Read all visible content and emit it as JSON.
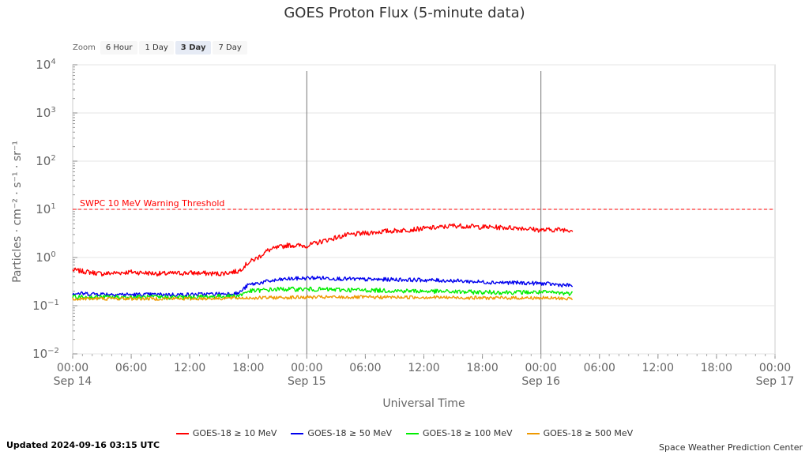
{
  "zoom": {
    "label": "Zoom",
    "buttons": [
      {
        "label": "6 Hour",
        "active": false
      },
      {
        "label": "1 Day",
        "active": false
      },
      {
        "label": "3 Day",
        "active": true
      },
      {
        "label": "7 Day",
        "active": false
      }
    ]
  },
  "chart_data": {
    "type": "line",
    "title": "GOES Proton Flux (5-minute data)",
    "xlabel": "Universal Time",
    "ylabel": "Particles · cm⁻² · s⁻¹ · sr⁻¹",
    "y_scale": "log",
    "ylim": [
      0.01,
      10000
    ],
    "y_ticks": [
      {
        "exp": -2,
        "base": "10",
        "sup": "−2"
      },
      {
        "exp": -1,
        "base": "10",
        "sup": "−1"
      },
      {
        "exp": 0,
        "base": "10",
        "sup": "0"
      },
      {
        "exp": 1,
        "base": "10",
        "sup": "1"
      },
      {
        "exp": 2,
        "base": "10",
        "sup": "2"
      },
      {
        "exp": 3,
        "base": "10",
        "sup": "3"
      },
      {
        "exp": 4,
        "base": "10",
        "sup": "4"
      }
    ],
    "xlim": [
      "2024-09-14 00:00",
      "2024-09-17 00:00"
    ],
    "x_ticks": [
      {
        "time": "2024-09-14 00:00",
        "label": "00:00",
        "date": "Sep 14"
      },
      {
        "time": "2024-09-14 06:00",
        "label": "06:00",
        "date": ""
      },
      {
        "time": "2024-09-14 12:00",
        "label": "12:00",
        "date": ""
      },
      {
        "time": "2024-09-14 18:00",
        "label": "18:00",
        "date": ""
      },
      {
        "time": "2024-09-15 00:00",
        "label": "00:00",
        "date": "Sep 15"
      },
      {
        "time": "2024-09-15 06:00",
        "label": "06:00",
        "date": ""
      },
      {
        "time": "2024-09-15 12:00",
        "label": "12:00",
        "date": ""
      },
      {
        "time": "2024-09-15 18:00",
        "label": "18:00",
        "date": ""
      },
      {
        "time": "2024-09-16 00:00",
        "label": "00:00",
        "date": "Sep 16"
      },
      {
        "time": "2024-09-16 06:00",
        "label": "06:00",
        "date": ""
      },
      {
        "time": "2024-09-16 12:00",
        "label": "12:00",
        "date": ""
      },
      {
        "time": "2024-09-16 18:00",
        "label": "18:00",
        "date": ""
      },
      {
        "time": "2024-09-17 00:00",
        "label": "00:00",
        "date": "Sep 17"
      }
    ],
    "day_lines": [
      "2024-09-15 00:00",
      "2024-09-16 00:00"
    ],
    "threshold": {
      "value": 10,
      "label": "SWPC 10 MeV Warning Threshold",
      "color": "#ff0000"
    },
    "grid": true,
    "legend_position": "bottom",
    "series": [
      {
        "name": "GOES-18 ≥ 10 MeV",
        "color": "#ff0000",
        "x": [
          "2024-09-14 00:00",
          "2024-09-14 03:00",
          "2024-09-14 06:00",
          "2024-09-14 09:00",
          "2024-09-14 12:00",
          "2024-09-14 15:00",
          "2024-09-14 17:00",
          "2024-09-14 18:00",
          "2024-09-14 19:00",
          "2024-09-14 20:00",
          "2024-09-14 21:00",
          "2024-09-14 22:00",
          "2024-09-15 00:00",
          "2024-09-15 02:00",
          "2024-09-15 04:00",
          "2024-09-15 06:00",
          "2024-09-15 08:00",
          "2024-09-15 10:00",
          "2024-09-15 12:00",
          "2024-09-15 14:00",
          "2024-09-15 15:00",
          "2024-09-15 16:00",
          "2024-09-15 18:00",
          "2024-09-15 20:00",
          "2024-09-15 22:00",
          "2024-09-16 00:00",
          "2024-09-16 02:00",
          "2024-09-16 03:15"
        ],
        "y": [
          0.55,
          0.46,
          0.5,
          0.46,
          0.48,
          0.46,
          0.52,
          0.78,
          1.0,
          1.4,
          1.6,
          1.8,
          1.75,
          2.3,
          2.9,
          3.2,
          3.5,
          3.7,
          4.0,
          4.3,
          4.6,
          4.5,
          4.3,
          4.2,
          4.1,
          3.7,
          3.8,
          3.7
        ]
      },
      {
        "name": "GOES-18 ≥ 50 MeV",
        "color": "#0000ee",
        "x": [
          "2024-09-14 00:00",
          "2024-09-14 06:00",
          "2024-09-14 12:00",
          "2024-09-14 17:00",
          "2024-09-14 18:00",
          "2024-09-14 20:00",
          "2024-09-14 22:00",
          "2024-09-15 01:00",
          "2024-09-15 04:00",
          "2024-09-15 06:00",
          "2024-09-15 09:00",
          "2024-09-15 12:00",
          "2024-09-15 15:00",
          "2024-09-15 18:00",
          "2024-09-15 21:00",
          "2024-09-16 00:00",
          "2024-09-16 03:15"
        ],
        "y": [
          0.18,
          0.17,
          0.17,
          0.18,
          0.27,
          0.32,
          0.36,
          0.38,
          0.36,
          0.35,
          0.35,
          0.34,
          0.33,
          0.31,
          0.3,
          0.29,
          0.26
        ]
      },
      {
        "name": "GOES-18 ≥ 100 MeV",
        "color": "#00ee00",
        "x": [
          "2024-09-14 00:00",
          "2024-09-14 06:00",
          "2024-09-14 12:00",
          "2024-09-14 17:00",
          "2024-09-14 18:00",
          "2024-09-14 21:00",
          "2024-09-15 00:00",
          "2024-09-15 06:00",
          "2024-09-15 12:00",
          "2024-09-15 18:00",
          "2024-09-16 00:00",
          "2024-09-16 03:15"
        ],
        "y": [
          0.15,
          0.15,
          0.15,
          0.16,
          0.2,
          0.22,
          0.22,
          0.21,
          0.2,
          0.19,
          0.19,
          0.18
        ]
      },
      {
        "name": "GOES-18 ≥ 500 MeV",
        "color": "#ee9900",
        "x": [
          "2024-09-14 00:00",
          "2024-09-14 06:00",
          "2024-09-14 12:00",
          "2024-09-14 18:00",
          "2024-09-15 00:00",
          "2024-09-15 06:00",
          "2024-09-15 12:00",
          "2024-09-15 18:00",
          "2024-09-16 00:00",
          "2024-09-16 03:15"
        ],
        "y": [
          0.14,
          0.14,
          0.14,
          0.145,
          0.15,
          0.15,
          0.15,
          0.145,
          0.145,
          0.14
        ]
      }
    ]
  },
  "footer": {
    "updated": "Updated 2024-09-16 03:15 UTC",
    "credit": "Space Weather Prediction Center"
  }
}
